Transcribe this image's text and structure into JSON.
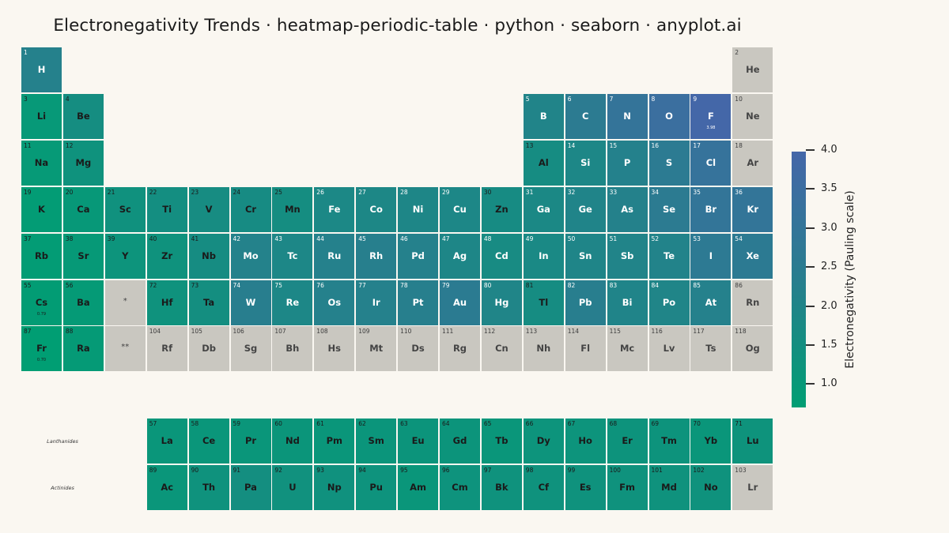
{
  "chart_data": {
    "type": "heatmap",
    "title": "Electronegativity Trends · heatmap-periodic-table · python · seaborn · anyplot.ai",
    "colorbar": {
      "label": "Electronegativity (Pauling scale)",
      "min": 0.7,
      "max": 3.98,
      "ticks": [
        "1.0",
        "1.5",
        "2.0",
        "2.5",
        "3.0",
        "3.5",
        "4.0"
      ],
      "colors": [
        "#009e73",
        "#287e8e",
        "#4467a8"
      ]
    },
    "no_data_color": "#c9c7c0",
    "row_labels": {
      "lanthanides": "Lanthanides",
      "actinides": "Actinides"
    },
    "placeholders": [
      {
        "label": "*",
        "period": 6,
        "group": 3
      },
      {
        "label": "**",
        "period": 7,
        "group": 3
      }
    ],
    "shown_value_labels": {
      "F": "3.98",
      "Cs": "0.79",
      "Fr": "0.70"
    },
    "elements": [
      {
        "number": "1",
        "symbol": "H",
        "en": 2.2,
        "period": 1,
        "group": 1
      },
      {
        "number": "2",
        "symbol": "He",
        "en": null,
        "period": 1,
        "group": 18
      },
      {
        "number": "3",
        "symbol": "Li",
        "en": 0.98,
        "period": 2,
        "group": 1
      },
      {
        "number": "4",
        "symbol": "Be",
        "en": 1.57,
        "period": 2,
        "group": 2
      },
      {
        "number": "5",
        "symbol": "B",
        "en": 2.04,
        "period": 2,
        "group": 13
      },
      {
        "number": "6",
        "symbol": "C",
        "en": 2.55,
        "period": 2,
        "group": 14
      },
      {
        "number": "7",
        "symbol": "N",
        "en": 3.04,
        "period": 2,
        "group": 15
      },
      {
        "number": "8",
        "symbol": "O",
        "en": 3.44,
        "period": 2,
        "group": 16
      },
      {
        "number": "9",
        "symbol": "F",
        "en": 3.98,
        "period": 2,
        "group": 17
      },
      {
        "number": "10",
        "symbol": "Ne",
        "en": null,
        "period": 2,
        "group": 18
      },
      {
        "number": "11",
        "symbol": "Na",
        "en": 0.93,
        "period": 3,
        "group": 1
      },
      {
        "number": "12",
        "symbol": "Mg",
        "en": 1.31,
        "period": 3,
        "group": 2
      },
      {
        "number": "13",
        "symbol": "Al",
        "en": 1.61,
        "period": 3,
        "group": 13
      },
      {
        "number": "14",
        "symbol": "Si",
        "en": 1.9,
        "period": 3,
        "group": 14
      },
      {
        "number": "15",
        "symbol": "P",
        "en": 2.19,
        "period": 3,
        "group": 15
      },
      {
        "number": "16",
        "symbol": "S",
        "en": 2.58,
        "period": 3,
        "group": 16
      },
      {
        "number": "17",
        "symbol": "Cl",
        "en": 3.16,
        "period": 3,
        "group": 17
      },
      {
        "number": "18",
        "symbol": "Ar",
        "en": null,
        "period": 3,
        "group": 18
      },
      {
        "number": "19",
        "symbol": "K",
        "en": 0.82,
        "period": 4,
        "group": 1
      },
      {
        "number": "20",
        "symbol": "Ca",
        "en": 1.0,
        "period": 4,
        "group": 2
      },
      {
        "number": "21",
        "symbol": "Sc",
        "en": 1.36,
        "period": 4,
        "group": 3
      },
      {
        "number": "22",
        "symbol": "Ti",
        "en": 1.54,
        "period": 4,
        "group": 4
      },
      {
        "number": "23",
        "symbol": "V",
        "en": 1.63,
        "period": 4,
        "group": 5
      },
      {
        "number": "24",
        "symbol": "Cr",
        "en": 1.66,
        "period": 4,
        "group": 6
      },
      {
        "number": "25",
        "symbol": "Mn",
        "en": 1.55,
        "period": 4,
        "group": 7
      },
      {
        "number": "26",
        "symbol": "Fe",
        "en": 1.83,
        "period": 4,
        "group": 8
      },
      {
        "number": "27",
        "symbol": "Co",
        "en": 1.88,
        "period": 4,
        "group": 9
      },
      {
        "number": "28",
        "symbol": "Ni",
        "en": 1.91,
        "period": 4,
        "group": 10
      },
      {
        "number": "29",
        "symbol": "Cu",
        "en": 1.9,
        "period": 4,
        "group": 11
      },
      {
        "number": "30",
        "symbol": "Zn",
        "en": 1.65,
        "period": 4,
        "group": 12
      },
      {
        "number": "31",
        "symbol": "Ga",
        "en": 1.81,
        "period": 4,
        "group": 13
      },
      {
        "number": "32",
        "symbol": "Ge",
        "en": 2.01,
        "period": 4,
        "group": 14
      },
      {
        "number": "33",
        "symbol": "As",
        "en": 2.18,
        "period": 4,
        "group": 15
      },
      {
        "number": "34",
        "symbol": "Se",
        "en": 2.55,
        "period": 4,
        "group": 16
      },
      {
        "number": "35",
        "symbol": "Br",
        "en": 2.96,
        "period": 4,
        "group": 17
      },
      {
        "number": "36",
        "symbol": "Kr",
        "en": 3.0,
        "period": 4,
        "group": 18
      },
      {
        "number": "37",
        "symbol": "Rb",
        "en": 0.82,
        "period": 5,
        "group": 1
      },
      {
        "number": "38",
        "symbol": "Sr",
        "en": 0.95,
        "period": 5,
        "group": 2
      },
      {
        "number": "39",
        "symbol": "Y",
        "en": 1.22,
        "period": 5,
        "group": 3
      },
      {
        "number": "40",
        "symbol": "Zr",
        "en": 1.33,
        "period": 5,
        "group": 4
      },
      {
        "number": "41",
        "symbol": "Nb",
        "en": 1.6,
        "period": 5,
        "group": 5
      },
      {
        "number": "42",
        "symbol": "Mo",
        "en": 2.16,
        "period": 5,
        "group": 6
      },
      {
        "number": "43",
        "symbol": "Tc",
        "en": 1.9,
        "period": 5,
        "group": 7
      },
      {
        "number": "44",
        "symbol": "Ru",
        "en": 2.2,
        "period": 5,
        "group": 8
      },
      {
        "number": "45",
        "symbol": "Rh",
        "en": 2.28,
        "period": 5,
        "group": 9
      },
      {
        "number": "46",
        "symbol": "Pd",
        "en": 2.2,
        "period": 5,
        "group": 10
      },
      {
        "number": "47",
        "symbol": "Ag",
        "en": 1.93,
        "period": 5,
        "group": 11
      },
      {
        "number": "48",
        "symbol": "Cd",
        "en": 1.69,
        "period": 5,
        "group": 12
      },
      {
        "number": "49",
        "symbol": "In",
        "en": 1.78,
        "period": 5,
        "group": 13
      },
      {
        "number": "50",
        "symbol": "Sn",
        "en": 1.96,
        "period": 5,
        "group": 14
      },
      {
        "number": "51",
        "symbol": "Sb",
        "en": 2.05,
        "period": 5,
        "group": 15
      },
      {
        "number": "52",
        "symbol": "Te",
        "en": 2.1,
        "period": 5,
        "group": 16
      },
      {
        "number": "53",
        "symbol": "I",
        "en": 2.66,
        "period": 5,
        "group": 17
      },
      {
        "number": "54",
        "symbol": "Xe",
        "en": 2.6,
        "period": 5,
        "group": 18
      },
      {
        "number": "55",
        "symbol": "Cs",
        "en": 0.79,
        "period": 6,
        "group": 1
      },
      {
        "number": "56",
        "symbol": "Ba",
        "en": 0.89,
        "period": 6,
        "group": 2
      },
      {
        "number": "72",
        "symbol": "Hf",
        "en": 1.3,
        "period": 6,
        "group": 4
      },
      {
        "number": "73",
        "symbol": "Ta",
        "en": 1.5,
        "period": 6,
        "group": 5
      },
      {
        "number": "74",
        "symbol": "W",
        "en": 2.36,
        "period": 6,
        "group": 6
      },
      {
        "number": "75",
        "symbol": "Re",
        "en": 1.9,
        "period": 6,
        "group": 7
      },
      {
        "number": "76",
        "symbol": "Os",
        "en": 2.2,
        "period": 6,
        "group": 8
      },
      {
        "number": "77",
        "symbol": "Ir",
        "en": 2.2,
        "period": 6,
        "group": 9
      },
      {
        "number": "78",
        "symbol": "Pt",
        "en": 2.28,
        "period": 6,
        "group": 10
      },
      {
        "number": "79",
        "symbol": "Au",
        "en": 2.54,
        "period": 6,
        "group": 11
      },
      {
        "number": "80",
        "symbol": "Hg",
        "en": 2.0,
        "period": 6,
        "group": 12
      },
      {
        "number": "81",
        "symbol": "Tl",
        "en": 1.62,
        "period": 6,
        "group": 13
      },
      {
        "number": "82",
        "symbol": "Pb",
        "en": 2.33,
        "period": 6,
        "group": 14
      },
      {
        "number": "83",
        "symbol": "Bi",
        "en": 2.02,
        "period": 6,
        "group": 15
      },
      {
        "number": "84",
        "symbol": "Po",
        "en": 2.0,
        "period": 6,
        "group": 16
      },
      {
        "number": "85",
        "symbol": "At",
        "en": 2.2,
        "period": 6,
        "group": 17
      },
      {
        "number": "86",
        "symbol": "Rn",
        "en": null,
        "period": 6,
        "group": 18
      },
      {
        "number": "87",
        "symbol": "Fr",
        "en": 0.7,
        "period": 7,
        "group": 1
      },
      {
        "number": "88",
        "symbol": "Ra",
        "en": 0.9,
        "period": 7,
        "group": 2
      },
      {
        "number": "104",
        "symbol": "Rf",
        "en": null,
        "period": 7,
        "group": 4
      },
      {
        "number": "105",
        "symbol": "Db",
        "en": null,
        "period": 7,
        "group": 5
      },
      {
        "number": "106",
        "symbol": "Sg",
        "en": null,
        "period": 7,
        "group": 6
      },
      {
        "number": "107",
        "symbol": "Bh",
        "en": null,
        "period": 7,
        "group": 7
      },
      {
        "number": "108",
        "symbol": "Hs",
        "en": null,
        "period": 7,
        "group": 8
      },
      {
        "number": "109",
        "symbol": "Mt",
        "en": null,
        "period": 7,
        "group": 9
      },
      {
        "number": "110",
        "symbol": "Ds",
        "en": null,
        "period": 7,
        "group": 10
      },
      {
        "number": "111",
        "symbol": "Rg",
        "en": null,
        "period": 7,
        "group": 11
      },
      {
        "number": "112",
        "symbol": "Cn",
        "en": null,
        "period": 7,
        "group": 12
      },
      {
        "number": "113",
        "symbol": "Nh",
        "en": null,
        "period": 7,
        "group": 13
      },
      {
        "number": "114",
        "symbol": "Fl",
        "en": null,
        "period": 7,
        "group": 14
      },
      {
        "number": "115",
        "symbol": "Mc",
        "en": null,
        "period": 7,
        "group": 15
      },
      {
        "number": "116",
        "symbol": "Lv",
        "en": null,
        "period": 7,
        "group": 16
      },
      {
        "number": "117",
        "symbol": "Ts",
        "en": null,
        "period": 7,
        "group": 17
      },
      {
        "number": "118",
        "symbol": "Og",
        "en": null,
        "period": 7,
        "group": 18
      },
      {
        "number": "57",
        "symbol": "La",
        "en": 1.1,
        "period": "lanthanides",
        "group": 4
      },
      {
        "number": "58",
        "symbol": "Ce",
        "en": 1.12,
        "period": "lanthanides",
        "group": 5
      },
      {
        "number": "59",
        "symbol": "Pr",
        "en": 1.13,
        "period": "lanthanides",
        "group": 6
      },
      {
        "number": "60",
        "symbol": "Nd",
        "en": 1.14,
        "period": "lanthanides",
        "group": 7
      },
      {
        "number": "61",
        "symbol": "Pm",
        "en": 1.13,
        "period": "lanthanides",
        "group": 8
      },
      {
        "number": "62",
        "symbol": "Sm",
        "en": 1.17,
        "period": "lanthanides",
        "group": 9
      },
      {
        "number": "63",
        "symbol": "Eu",
        "en": 1.2,
        "period": "lanthanides",
        "group": 10
      },
      {
        "number": "64",
        "symbol": "Gd",
        "en": 1.2,
        "period": "lanthanides",
        "group": 11
      },
      {
        "number": "65",
        "symbol": "Tb",
        "en": 1.1,
        "period": "lanthanides",
        "group": 12
      },
      {
        "number": "66",
        "symbol": "Dy",
        "en": 1.22,
        "period": "lanthanides",
        "group": 13
      },
      {
        "number": "67",
        "symbol": "Ho",
        "en": 1.23,
        "period": "lanthanides",
        "group": 14
      },
      {
        "number": "68",
        "symbol": "Er",
        "en": 1.24,
        "period": "lanthanides",
        "group": 15
      },
      {
        "number": "69",
        "symbol": "Tm",
        "en": 1.25,
        "period": "lanthanides",
        "group": 16
      },
      {
        "number": "70",
        "symbol": "Yb",
        "en": 1.1,
        "period": "lanthanides",
        "group": 17
      },
      {
        "number": "71",
        "symbol": "Lu",
        "en": 1.27,
        "period": "lanthanides",
        "group": 18
      },
      {
        "number": "89",
        "symbol": "Ac",
        "en": 1.1,
        "period": "actinides",
        "group": 4
      },
      {
        "number": "90",
        "symbol": "Th",
        "en": 1.3,
        "period": "actinides",
        "group": 5
      },
      {
        "number": "91",
        "symbol": "Pa",
        "en": 1.5,
        "period": "actinides",
        "group": 6
      },
      {
        "number": "92",
        "symbol": "U",
        "en": 1.38,
        "period": "actinides",
        "group": 7
      },
      {
        "number": "93",
        "symbol": "Np",
        "en": 1.36,
        "period": "actinides",
        "group": 8
      },
      {
        "number": "94",
        "symbol": "Pu",
        "en": 1.28,
        "period": "actinides",
        "group": 9
      },
      {
        "number": "95",
        "symbol": "Am",
        "en": 1.13,
        "period": "actinides",
        "group": 10
      },
      {
        "number": "96",
        "symbol": "Cm",
        "en": 1.28,
        "period": "actinides",
        "group": 11
      },
      {
        "number": "97",
        "symbol": "Bk",
        "en": 1.3,
        "period": "actinides",
        "group": 12
      },
      {
        "number": "98",
        "symbol": "Cf",
        "en": 1.3,
        "period": "actinides",
        "group": 13
      },
      {
        "number": "99",
        "symbol": "Es",
        "en": 1.3,
        "period": "actinides",
        "group": 14
      },
      {
        "number": "100",
        "symbol": "Fm",
        "en": 1.3,
        "period": "actinides",
        "group": 15
      },
      {
        "number": "101",
        "symbol": "Md",
        "en": 1.3,
        "period": "actinides",
        "group": 16
      },
      {
        "number": "102",
        "symbol": "No",
        "en": 1.3,
        "period": "actinides",
        "group": 17
      },
      {
        "number": "103",
        "symbol": "Lr",
        "en": null,
        "period": "actinides",
        "group": 18
      }
    ]
  }
}
